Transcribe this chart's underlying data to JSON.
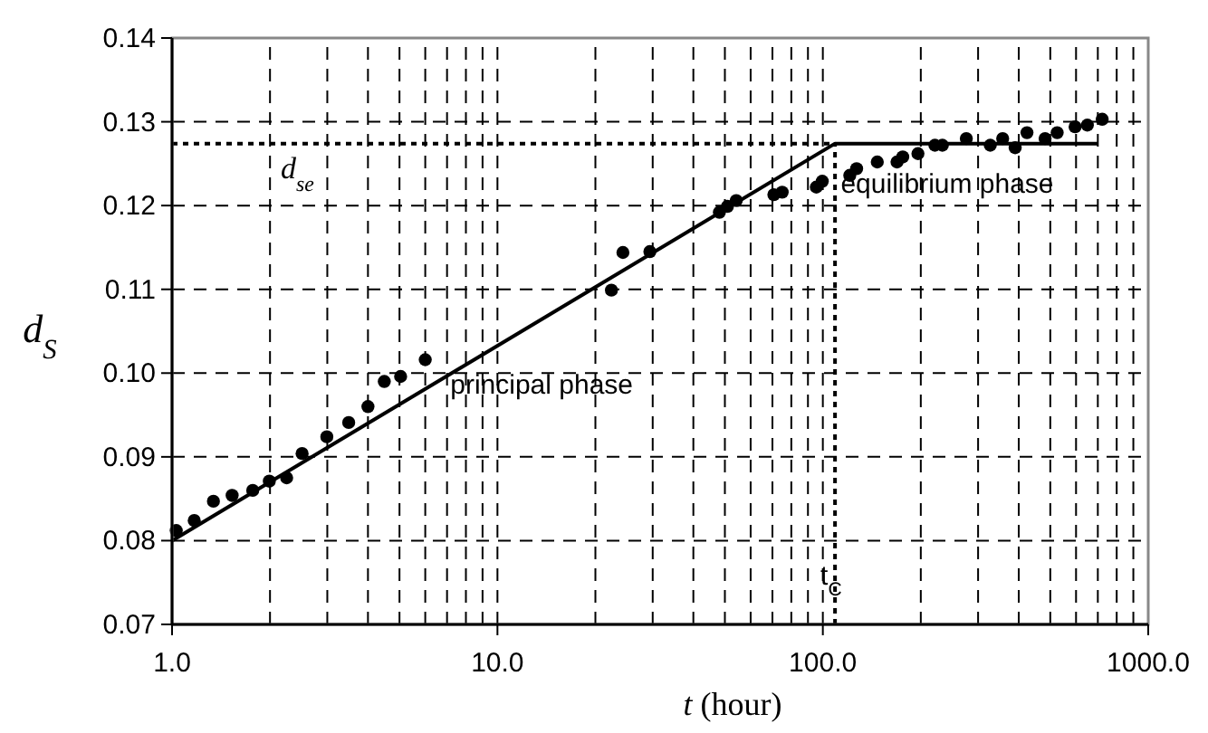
{
  "chart_data": {
    "type": "scatter",
    "xlabel": "t (hour)",
    "ylabel": "d$_{S}$",
    "log": "x",
    "grid": true,
    "marker": "circle",
    "xlim": [
      1,
      1000
    ],
    "ylim": [
      0.07,
      0.14
    ],
    "xticks": [
      {
        "value": 1,
        "label": "1.0"
      },
      {
        "value": 2,
        "label": null
      },
      {
        "value": 3,
        "label": null
      },
      {
        "value": 4,
        "label": null
      },
      {
        "value": 5,
        "label": null
      },
      {
        "value": 6,
        "label": null
      },
      {
        "value": 7,
        "label": null
      },
      {
        "value": 8,
        "label": null
      },
      {
        "value": 9,
        "label": null
      },
      {
        "value": 10,
        "label": "10.0"
      },
      {
        "value": 20,
        "label": null
      },
      {
        "value": 30,
        "label": null
      },
      {
        "value": 40,
        "label": null
      },
      {
        "value": 50,
        "label": null
      },
      {
        "value": 60,
        "label": null
      },
      {
        "value": 70,
        "label": null
      },
      {
        "value": 80,
        "label": null
      },
      {
        "value": 90,
        "label": null
      },
      {
        "value": 100,
        "label": "100.0"
      },
      {
        "value": 200,
        "label": null
      },
      {
        "value": 300,
        "label": null
      },
      {
        "value": 400,
        "label": null
      },
      {
        "value": 500,
        "label": null
      },
      {
        "value": 600,
        "label": null
      },
      {
        "value": 700,
        "label": null
      },
      {
        "value": 800,
        "label": null
      },
      {
        "value": 900,
        "label": null
      },
      {
        "value": 1000,
        "label": "1000.0"
      }
    ],
    "yticks": [
      0.07,
      0.08,
      0.09,
      {
        "value": 0.1,
        "label": "0.10"
      },
      0.11,
      0.12,
      0.13,
      0.14
    ],
    "series": [
      {
        "color": "#000000",
        "x": [
          1.03,
          1.17,
          1.34,
          1.53,
          1.77,
          1.99,
          2.25,
          2.51,
          2.99,
          3.49,
          4.0,
          4.49,
          5.04,
          6.0,
          22.4,
          24.3,
          29.4,
          48.1,
          50.9,
          54.2,
          70.7,
          75,
          95.5,
          99.6,
          121,
          127,
          147,
          169,
          176,
          196,
          221,
          233,
          276,
          327,
          357,
          390,
          424,
          482,
          525,
          596,
          650,
          722
        ],
        "values": [
          0.0812,
          0.0824,
          0.0847,
          0.0854,
          0.086,
          0.0871,
          0.0875,
          0.0904,
          0.0924,
          0.0941,
          0.096,
          0.099,
          0.0996,
          0.1016,
          0.1099,
          0.1144,
          0.1145,
          0.1192,
          0.1199,
          0.1206,
          0.1213,
          0.1216,
          0.1222,
          0.1229,
          0.1236,
          0.1244,
          0.1252,
          0.1252,
          0.1258,
          0.1262,
          0.1272,
          0.1272,
          0.128,
          0.1272,
          0.128,
          0.1269,
          0.1287,
          0.128,
          0.1287,
          0.1294,
          0.1296,
          0.1303
        ]
      },
      {
        "type": "line",
        "color": "#000000",
        "marker": "none",
        "x": [
          1,
          109,
          700
        ],
        "values": [
          0.08,
          0.1274,
          0.1274
        ]
      }
    ],
    "ref_lines": [
      {
        "axis": "y",
        "value": 0.1274,
        "label": "d$_{se}$",
        "line_style": "dotted",
        "color": "#000000"
      },
      {
        "axis": "x",
        "value": 109,
        "label": "t$_{C}$",
        "line_style": "dotted",
        "color": "#000000"
      }
    ],
    "annotations": [
      "principal phase",
      "equilibrium phase"
    ]
  }
}
